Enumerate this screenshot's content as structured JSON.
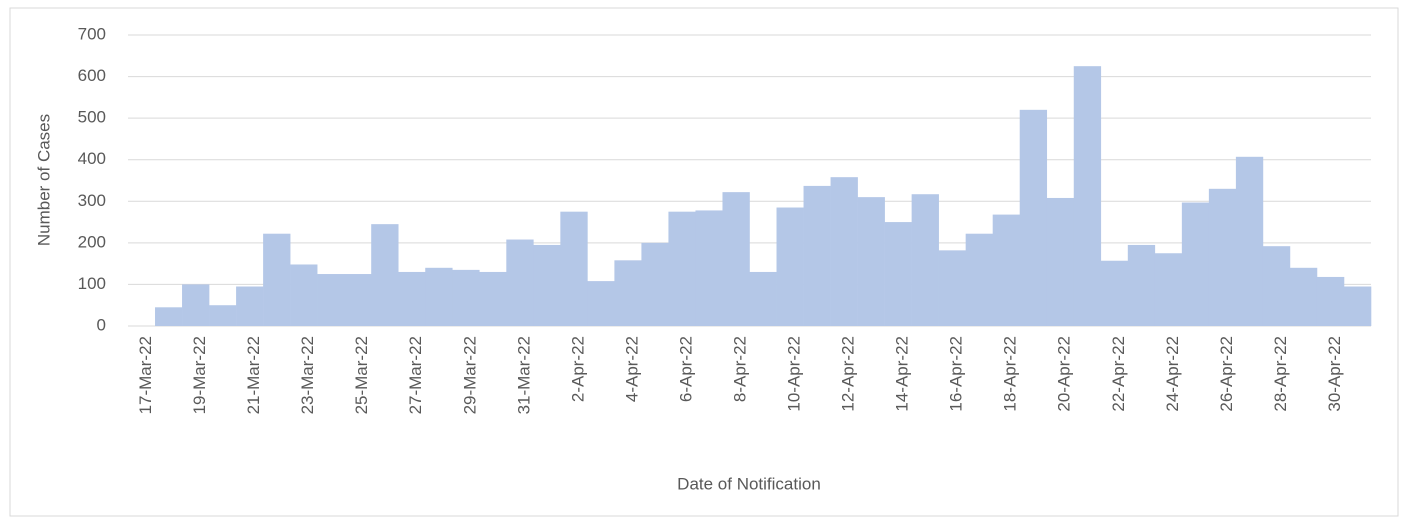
{
  "chart_data": {
    "type": "bar",
    "x_label": "Date of Notification",
    "y_label": "Number of Cases",
    "categories": [
      "17-Mar-22",
      null,
      "19-Mar-22",
      null,
      "21-Mar-22",
      null,
      "23-Mar-22",
      null,
      "25-Mar-22",
      null,
      "27-Mar-22",
      null,
      "29-Mar-22",
      null,
      "31-Mar-22",
      null,
      "2-Apr-22",
      null,
      "4-Apr-22",
      null,
      "6-Apr-22",
      null,
      "8-Apr-22",
      null,
      "10-Apr-22",
      null,
      "12-Apr-22",
      null,
      "14-Apr-22",
      null,
      "16-Apr-22",
      null,
      "18-Apr-22",
      null,
      "20-Apr-22",
      null,
      "22-Apr-22",
      null,
      "24-Apr-22",
      null,
      "26-Apr-22",
      null,
      "28-Apr-22",
      null,
      "30-Apr-22",
      null
    ],
    "values": [
      0,
      45,
      100,
      50,
      95,
      222,
      148,
      125,
      125,
      245,
      130,
      140,
      135,
      130,
      208,
      195,
      275,
      108,
      158,
      200,
      275,
      278,
      322,
      130,
      285,
      337,
      358,
      310,
      250,
      317,
      182,
      222,
      268,
      520,
      308,
      625,
      157,
      195,
      175,
      297,
      330,
      407,
      192,
      140,
      118,
      95
    ],
    "color": "#b4c7e7",
    "ylim": [
      0,
      700
    ],
    "yticks": [
      0,
      100,
      200,
      300,
      400,
      500,
      600,
      700
    ],
    "grid": true
  }
}
